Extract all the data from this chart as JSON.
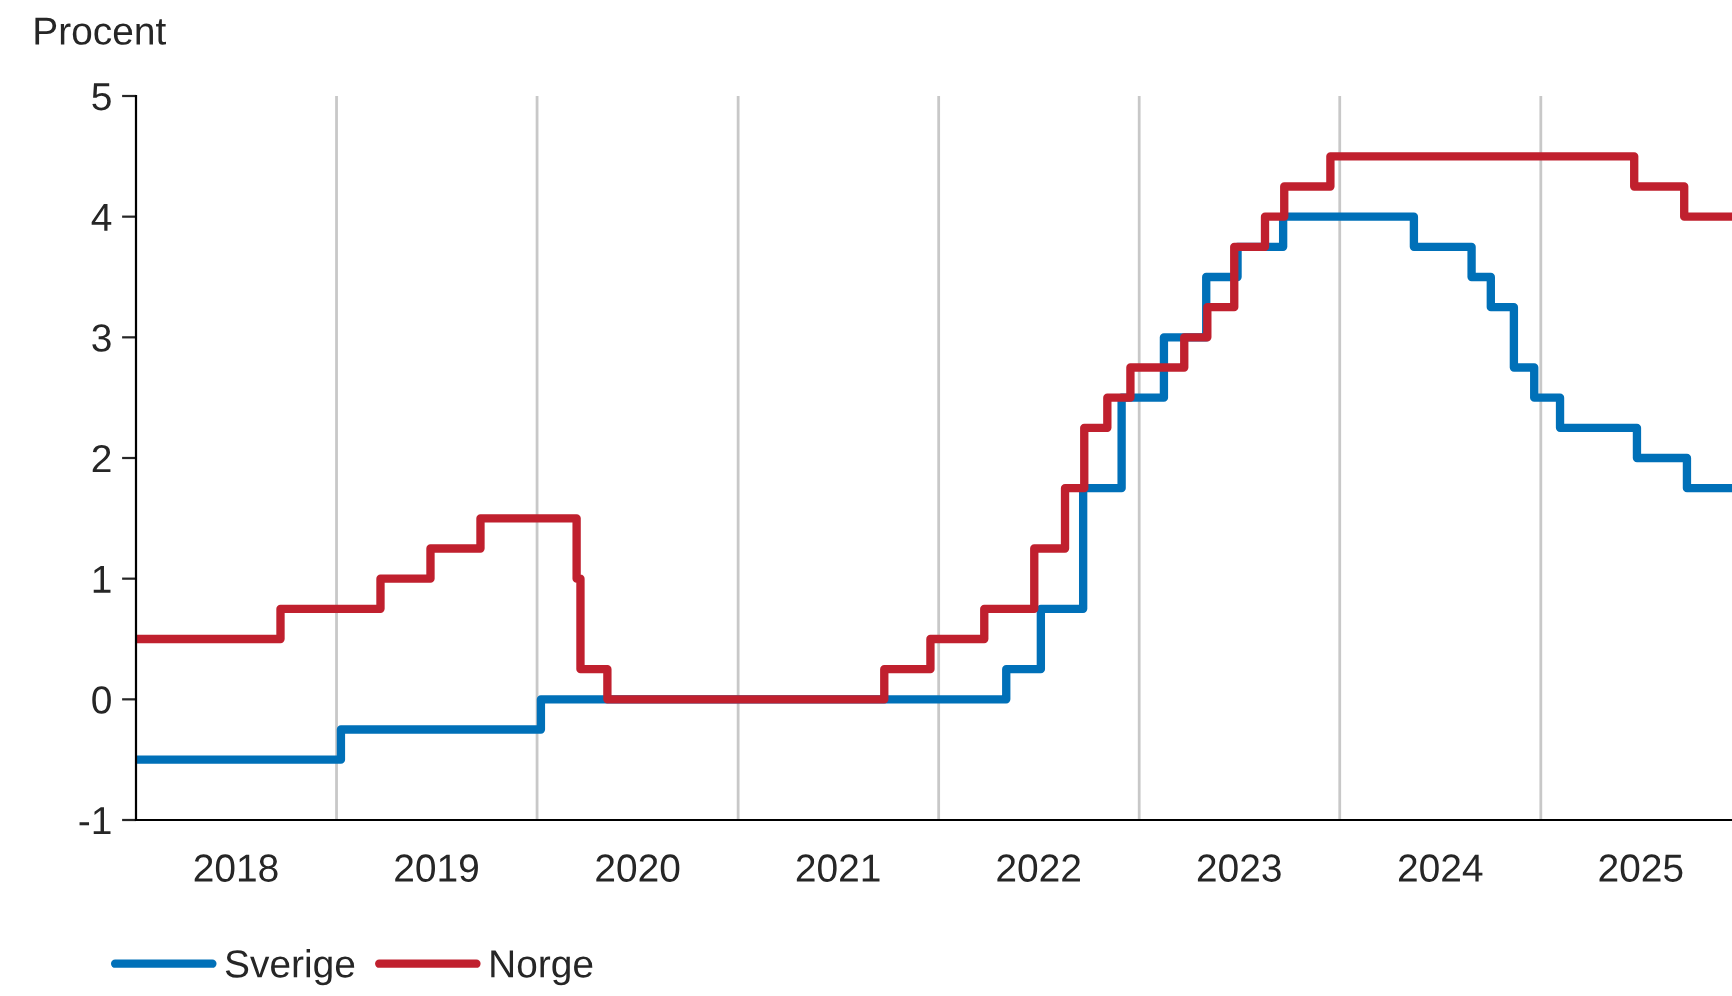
{
  "chart_data": {
    "type": "step",
    "ylabel": "Procent",
    "x": [
      "2018-01-01",
      "2018-09-21",
      "2019-03-22",
      "2019-06-21",
      "2019-09-20",
      "2020-03-13",
      "2020-03-20",
      "2020-05-08",
      "2021-09-24",
      "2021-12-17",
      "2022-03-25",
      "2022-06-24",
      "2022-08-19",
      "2022-09-23",
      "2022-11-04",
      "2022-12-16",
      "2023-03-24",
      "2023-05-05",
      "2023-06-23",
      "2023-08-18",
      "2023-09-22",
      "2023-12-15",
      "2025-06-20",
      "2025-09-19",
      "2025-12-15"
    ],
    "series": [
      {
        "name": "Sverige",
        "color": "#0070b8",
        "x": [
          "2018-01-01",
          "2019-01-09",
          "2020-01-08",
          "2022-05-04",
          "2022-07-06",
          "2022-09-21",
          "2022-11-30",
          "2023-02-15",
          "2023-05-03",
          "2023-06-29",
          "2023-09-20",
          "2024-05-15",
          "2024-08-28",
          "2024-10-02",
          "2024-11-13",
          "2024-12-20",
          "2025-02-05",
          "2025-06-25",
          "2025-09-24",
          "2025-12-15"
        ],
        "values": [
          -0.5,
          -0.25,
          0,
          0.25,
          0.75,
          1.75,
          2.5,
          3.0,
          3.5,
          3.75,
          4.0,
          3.75,
          3.5,
          3.25,
          2.75,
          2.5,
          2.25,
          2.0,
          1.75,
          1.75
        ]
      },
      {
        "name": "Norge",
        "color": "#c0202e",
        "values": [
          0.5,
          0.75,
          1.0,
          1.25,
          1.5,
          1.0,
          0.25,
          0,
          0.25,
          0.5,
          0.75,
          1.25,
          1.75,
          2.25,
          2.5,
          2.75,
          3.0,
          3.25,
          3.75,
          4.0,
          4.25,
          4.5,
          4.25,
          4.0,
          4.0
        ]
      }
    ],
    "xlim": [
      "2018-01-01",
      "2025-12-15"
    ],
    "xticks": [
      {
        "value": "2019-01-01",
        "label": null
      },
      {
        "value": "2020-01-01",
        "label": null
      },
      {
        "value": "2021-01-01",
        "label": null
      },
      {
        "value": "2022-01-01",
        "label": null
      },
      {
        "value": "2023-01-01",
        "label": null
      },
      {
        "value": "2024-01-01",
        "label": null
      },
      {
        "value": "2025-01-01",
        "label": null
      },
      {
        "value": "2018-07-02",
        "label": "2018"
      },
      {
        "value": "2019-07-02",
        "label": "2019"
      },
      {
        "value": "2020-07-02",
        "label": "2020"
      },
      {
        "value": "2021-07-02",
        "label": "2021"
      },
      {
        "value": "2022-07-02",
        "label": "2022"
      },
      {
        "value": "2023-07-02",
        "label": "2023"
      },
      {
        "value": "2024-07-02",
        "label": "2024"
      },
      {
        "value": "2025-07-02",
        "label": "2025"
      }
    ],
    "ylim": [
      -1,
      5
    ],
    "yticks": [
      -1,
      0,
      1,
      2,
      3,
      4,
      5
    ],
    "grid": "x",
    "legend": "bottom left",
    "line_style": "solid"
  }
}
